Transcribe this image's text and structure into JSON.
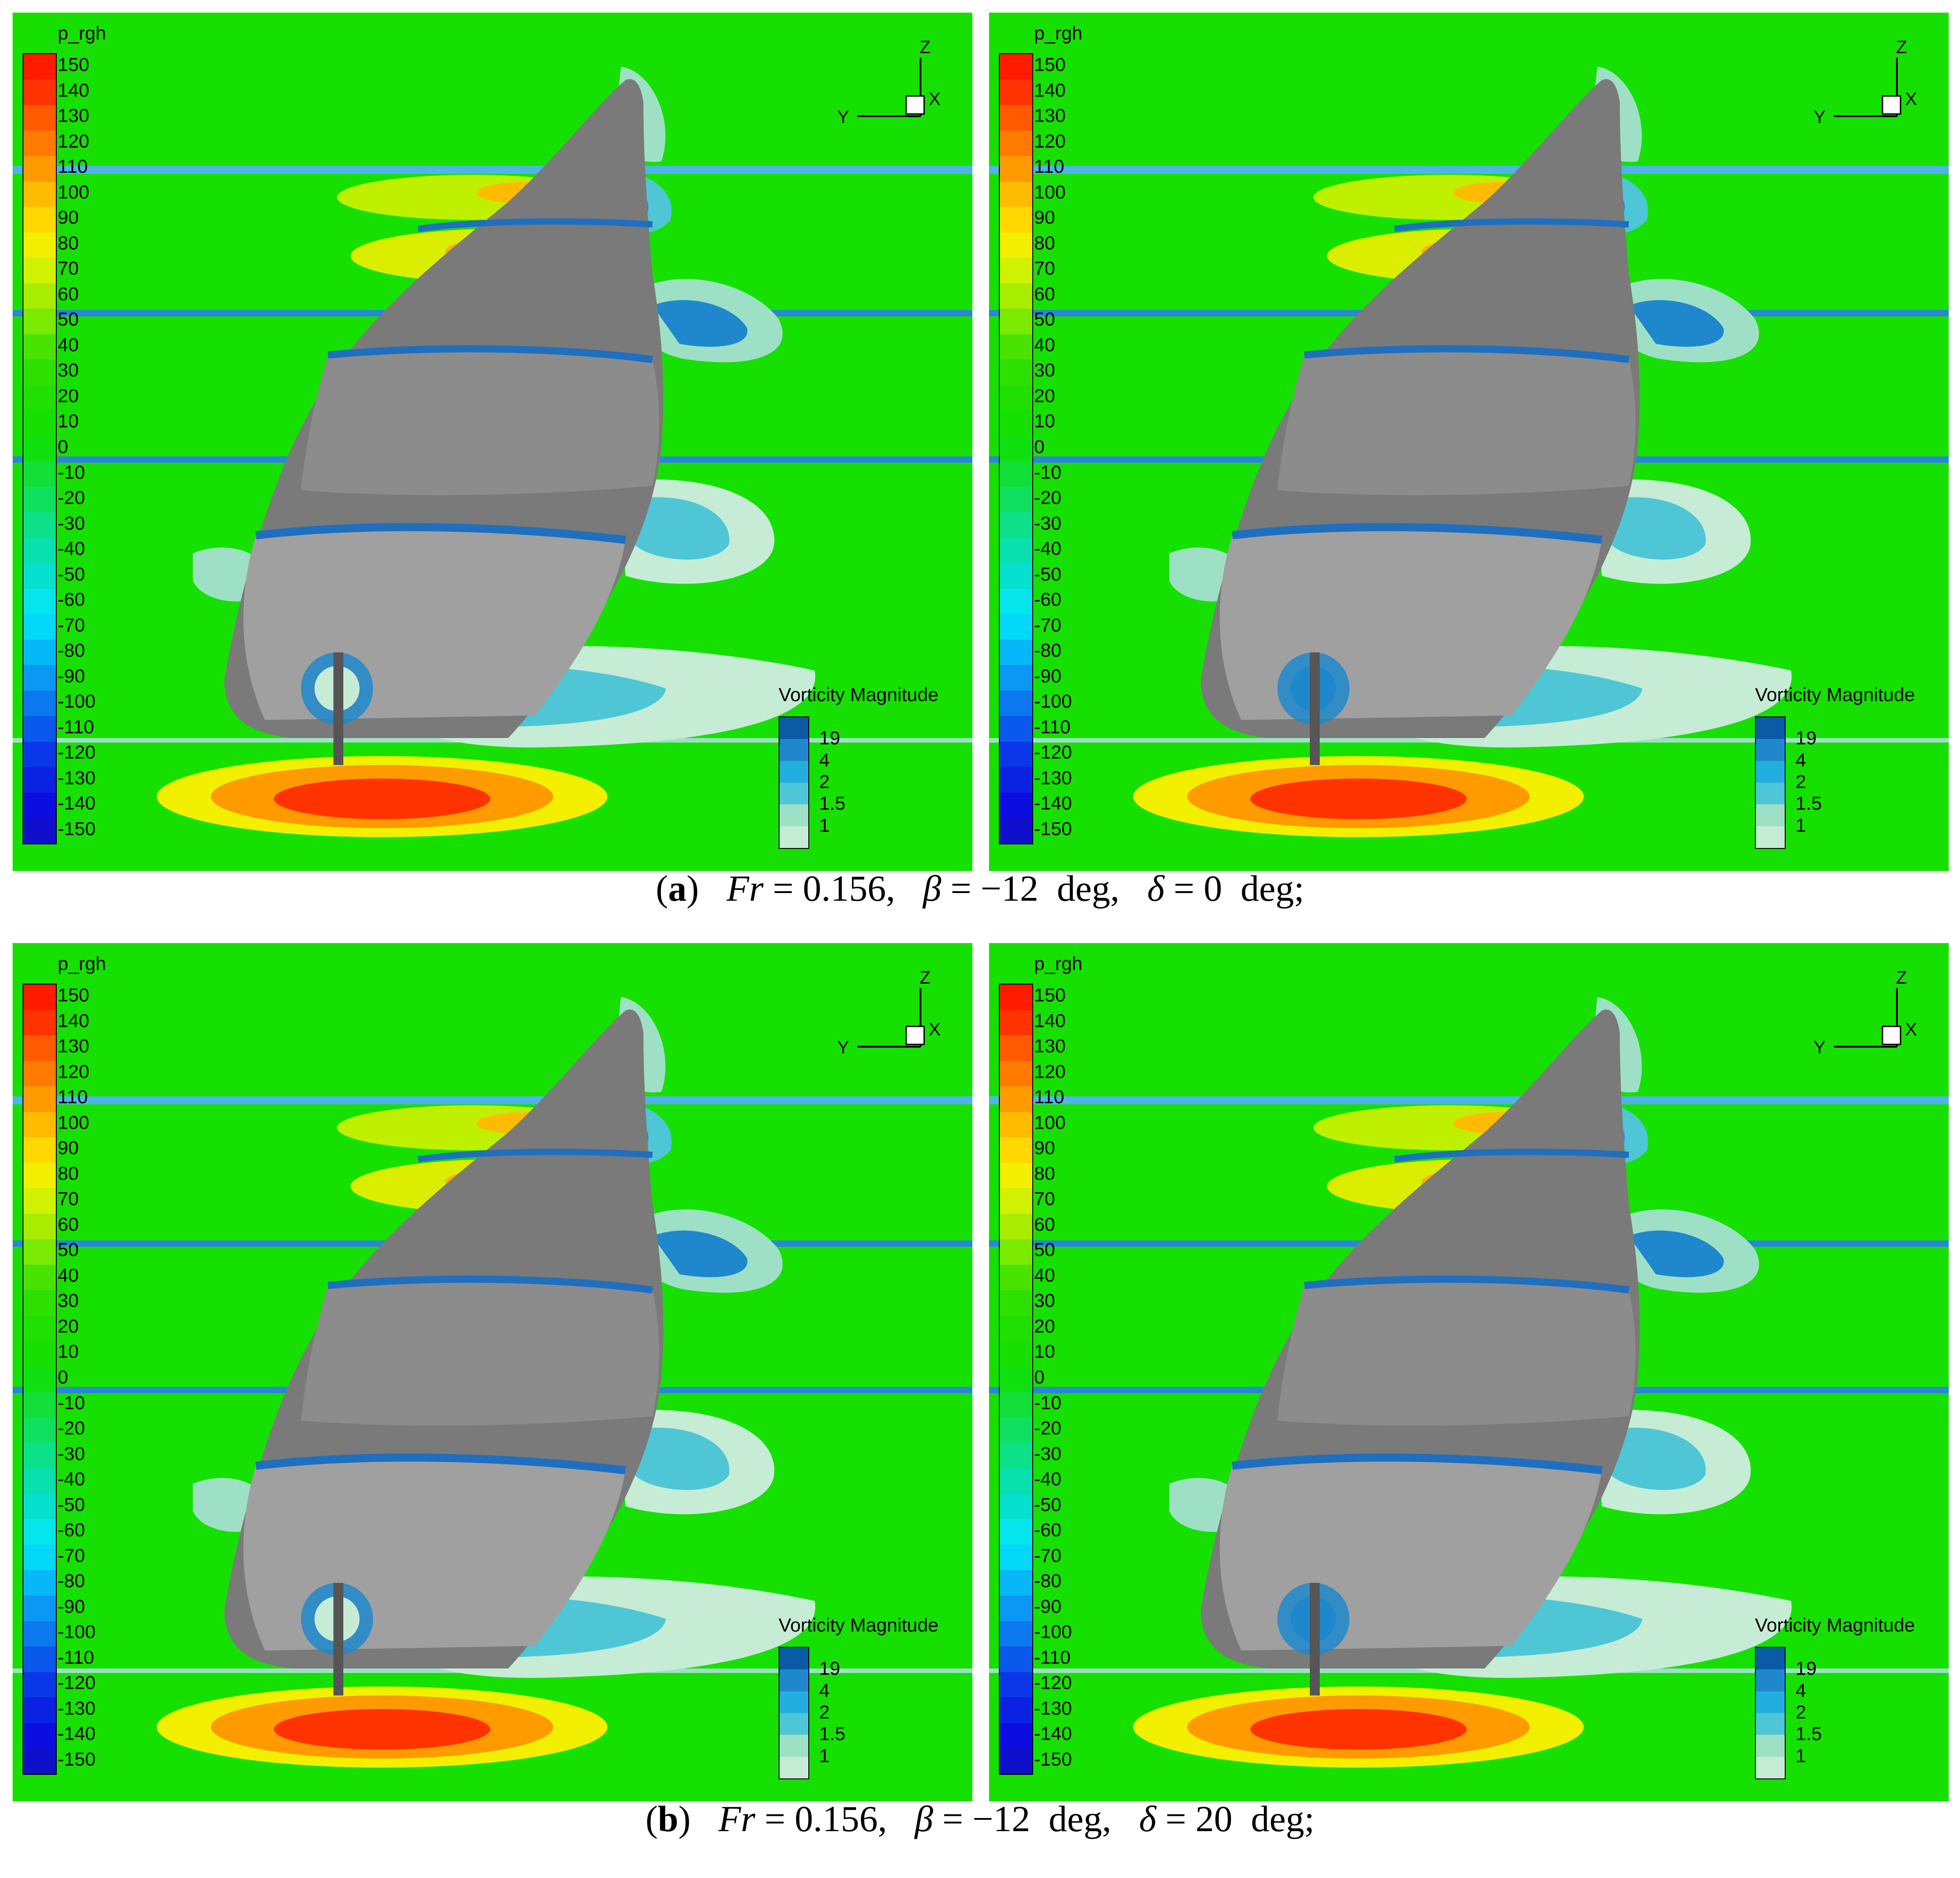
{
  "panels": [
    {
      "row": "a",
      "variant": "propeller"
    },
    {
      "row": "a",
      "variant": "rudder"
    },
    {
      "row": "b",
      "variant": "propeller"
    },
    {
      "row": "b",
      "variant": "rudder"
    }
  ],
  "colorbar": {
    "title": "p_rgh",
    "labels": [
      "150",
      "140",
      "130",
      "120",
      "110",
      "100",
      "90",
      "80",
      "70",
      "60",
      "50",
      "40",
      "30",
      "20",
      "10",
      "0",
      "-10",
      "-20",
      "-30",
      "-40",
      "-50",
      "-60",
      "-70",
      "-80",
      "-90",
      "-100",
      "-110",
      "-120",
      "-130",
      "-140",
      "-150"
    ],
    "colors": [
      "#ff1a00",
      "#ff3300",
      "#ff5a00",
      "#ff7a00",
      "#ff9a00",
      "#ffbb00",
      "#ffd800",
      "#f2ef00",
      "#d0f200",
      "#a8ec00",
      "#7aea00",
      "#48e400",
      "#2ee000",
      "#1fe000",
      "#16e000",
      "#10e010",
      "#12e038",
      "#10e060",
      "#0ce088",
      "#08e0ae",
      "#06e0cf",
      "#05e6ec",
      "#04d8f8",
      "#06b8f8",
      "#0a98f4",
      "#0b78f0",
      "#0a58ec",
      "#0a38e8",
      "#0c22e2",
      "#0c0ee0",
      "#1010cc"
    ]
  },
  "axes": {
    "z": "Z",
    "x": "X",
    "y": "Y"
  },
  "vorticity": {
    "title": "Vorticity Magnitude",
    "labels": [
      "19",
      "4",
      "2",
      "1.5",
      "1"
    ],
    "colors": [
      "#0a5aa6",
      "#1f88cc",
      "#22aede",
      "#4fc6d6",
      "#9ee0c6",
      "#c6ecd6"
    ]
  },
  "captions": {
    "a": {
      "label": "a",
      "fr_symbol": "Fr",
      "fr_value": "0.156",
      "beta_symbol": "β",
      "beta_value": "−12",
      "unit": "deg",
      "delta_symbol": "δ",
      "delta_a": "0"
    },
    "b": {
      "label": "b",
      "fr_symbol": "Fr",
      "fr_value": "0.156",
      "beta_symbol": "β",
      "beta_value": "−12",
      "unit": "deg",
      "delta_symbol": "δ",
      "delta_b": "20"
    }
  }
}
